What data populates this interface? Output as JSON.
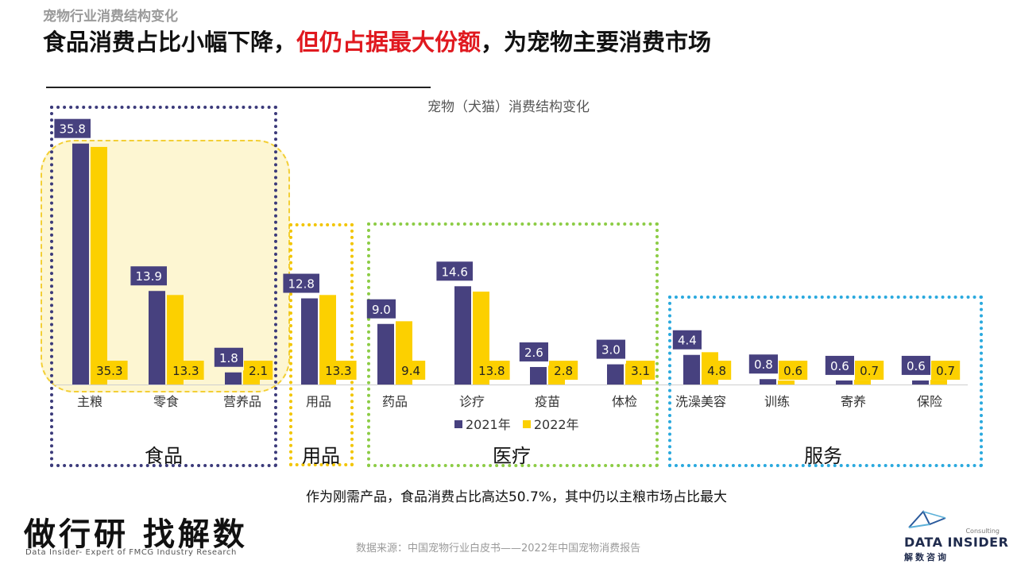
{
  "header": {
    "breadcrumb": "宠物行业消费结构变化",
    "headline_part1": "食品消费占比小幅下降，",
    "headline_highlight": "但仍占据最大份额",
    "headline_part2": "，为宠物主要消费市场"
  },
  "groups": [
    {
      "label": "食品",
      "color": "#3b3a7a"
    },
    {
      "label": "用品",
      "color": "#f2c500"
    },
    {
      "label": "医疗",
      "color": "#8ccc45"
    },
    {
      "label": "服务",
      "color": "#2aa9de"
    }
  ],
  "chart_data": {
    "type": "bar",
    "title": "宠物（犬猫）消费结构变化",
    "categories": [
      "主粮",
      "零食",
      "营养品",
      "用品",
      "药品",
      "诊疗",
      "疫苗",
      "体检",
      "洗澡美容",
      "训练",
      "寄养",
      "保险"
    ],
    "series": [
      {
        "name": "2021年",
        "color": "#47417f",
        "values": [
          35.8,
          13.9,
          1.8,
          12.8,
          9.0,
          14.6,
          2.6,
          3.0,
          4.4,
          0.8,
          0.6,
          0.6
        ],
        "labels": [
          "35.8",
          "13.9",
          "1.8",
          "12.8",
          "9.0",
          "14.6",
          "2.6",
          "3.0",
          "4.4",
          "0.8",
          "0.6",
          "0.6"
        ]
      },
      {
        "name": "2022年",
        "color": "#fcd000",
        "values": [
          35.3,
          13.3,
          2.1,
          13.3,
          9.4,
          13.8,
          2.8,
          3.1,
          4.8,
          0.6,
          0.7,
          0.7
        ],
        "labels": [
          "35.3",
          "13.3",
          "2.1",
          "13.3",
          "9.4",
          "13.8",
          "2.8",
          "3.1",
          "4.8",
          "0.6",
          "0.7",
          "0.7"
        ]
      }
    ],
    "ylim": [
      0,
      36
    ],
    "legend_position": "bottom-center",
    "grid": false
  },
  "note": "作为刚需产品，食品消费占比高达50.7%，其中仍以主粮市场占比最大",
  "footer": {
    "slogan": "做行研 找解数",
    "slogan_sub": "Data Insider- Expert of FMCG Industry Research",
    "source": "数据来源：中国宠物行业白皮书——2022年中国宠物消费报告",
    "logo_consulting": "Consulting",
    "logo_brand": "DATA INSIDER",
    "logo_brand_cn": "解数咨询"
  }
}
